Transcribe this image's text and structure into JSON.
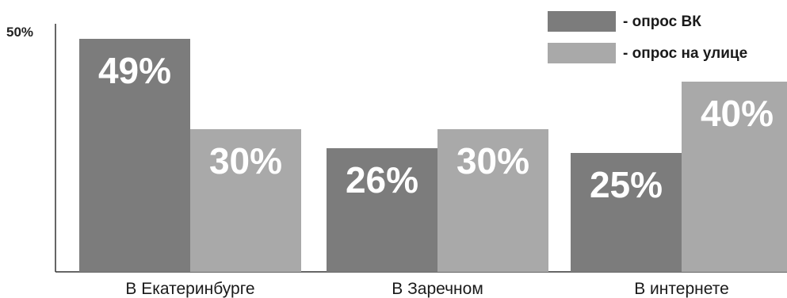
{
  "chart_data": {
    "type": "bar",
    "title": "",
    "xlabel": "",
    "ylabel": "",
    "categories": [
      "В Екатеринбурге",
      "В Заречном",
      "В интернете"
    ],
    "series": [
      {
        "name": "- опрос ВК",
        "values": [
          49,
          26,
          25
        ],
        "labels": [
          "49%",
          "26%",
          "25%"
        ],
        "color": "#7c7c7c"
      },
      {
        "name": "- опрос на улице",
        "values": [
          30,
          30,
          40
        ],
        "labels": [
          "30%",
          "30%",
          "40%"
        ],
        "color": "#a9a9a9"
      }
    ],
    "ylim": [
      0,
      50
    ],
    "y_tick_labels": [
      "50%"
    ],
    "grid": false,
    "legend": "top-right"
  }
}
